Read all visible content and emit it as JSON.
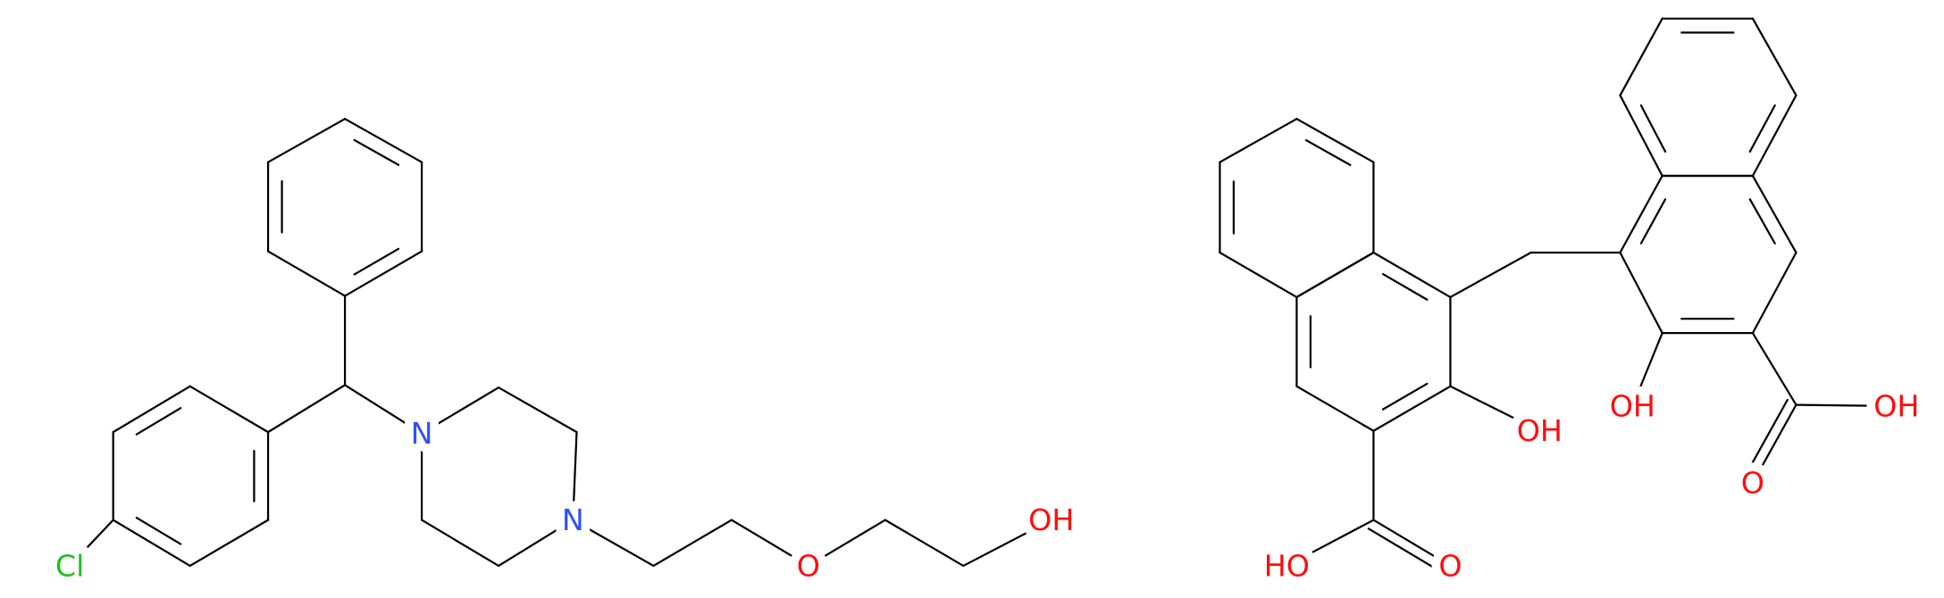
{
  "molecules": [
    {
      "labels": [
        "Cl",
        "N",
        "N",
        "O",
        "OH"
      ]
    },
    {
      "labels": [
        "OH",
        "HO",
        "O",
        "OH",
        "OH",
        "O"
      ]
    }
  ]
}
